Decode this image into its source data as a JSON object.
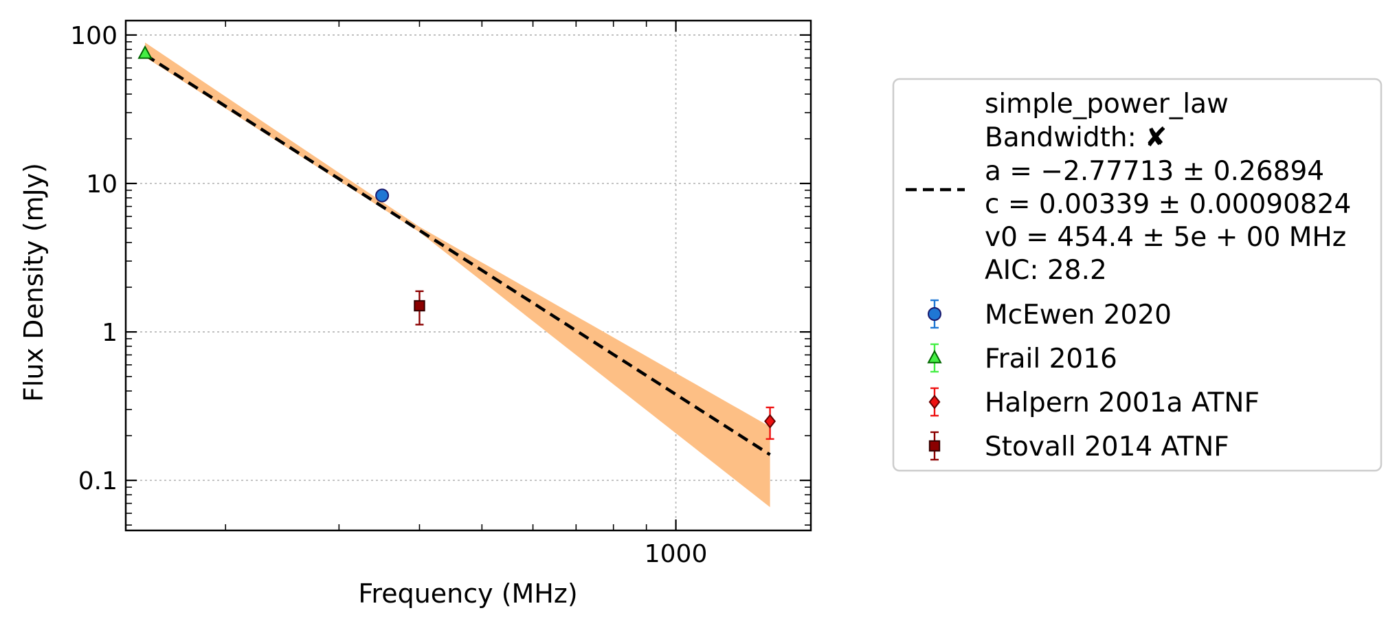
{
  "chart_data": {
    "type": "scatter",
    "title": "",
    "xlabel": "Frequency (MHz)",
    "ylabel": "Flux Density (mJy)",
    "xscale": "log",
    "yscale": "log",
    "xlim": [
      140,
      1620
    ],
    "ylim": [
      0.046,
      125
    ],
    "grid": true,
    "legend_position": "right",
    "x_ticks": [
      {
        "value": 1000,
        "label": "1000"
      }
    ],
    "y_ticks": [
      {
        "value": 100,
        "label": "100"
      },
      {
        "value": 10,
        "label": "10"
      },
      {
        "value": 1,
        "label": "1"
      },
      {
        "value": 0.1,
        "label": "0.1"
      }
    ],
    "fit": {
      "model": "simple_power_law",
      "bandwidth_label": "Bandwidth:",
      "bandwidth_mark": "✘",
      "params_text": [
        "a = −2.77713 ± 0.26894",
        "c = 0.00339 ± 0.00090824",
        "v0 = 454.4 ± 5e + 00 MHz"
      ],
      "aic_text": "AIC: 28.2",
      "x_range": [
        150,
        1400
      ],
      "a": -2.77713,
      "c": 0.00339,
      "v0": 454.4,
      "band": [
        {
          "x": 150,
          "lo": 71,
          "hi": 89
        },
        {
          "x": 400,
          "lo": 4.7,
          "hi": 5.1
        },
        {
          "x": 1400,
          "lo": 0.066,
          "hi": 0.23
        }
      ],
      "line_color": "#000000",
      "band_color": "#fdbf85"
    },
    "series": [
      {
        "name": "McEwen 2020",
        "marker": "circle",
        "color": "#1f77d4",
        "edge": "#1a1a6e",
        "error_color": "#1f77d4",
        "points": [
          {
            "x": 350,
            "y": 8.3,
            "ylo": 8.3,
            "yhi": 8.3
          }
        ]
      },
      {
        "name": "Frail 2016",
        "marker": "triangle",
        "color": "#44ee44",
        "edge": "#006600",
        "error_color": "#44ee44",
        "points": [
          {
            "x": 150,
            "y": 75,
            "ylo": 75,
            "yhi": 75
          }
        ]
      },
      {
        "name": "Halpern 2001a ATNF",
        "marker": "diamond",
        "color": "#ee1111",
        "edge": "#660000",
        "error_color": "#ee1111",
        "points": [
          {
            "x": 1400,
            "y": 0.25,
            "ylo": 0.19,
            "yhi": 0.31
          }
        ]
      },
      {
        "name": "Stovall 2014 ATNF",
        "marker": "square",
        "color": "#8b0000",
        "edge": "#330000",
        "error_color": "#8b0000",
        "points": [
          {
            "x": 400,
            "y": 1.5,
            "ylo": 1.12,
            "yhi": 1.88
          }
        ]
      }
    ]
  }
}
